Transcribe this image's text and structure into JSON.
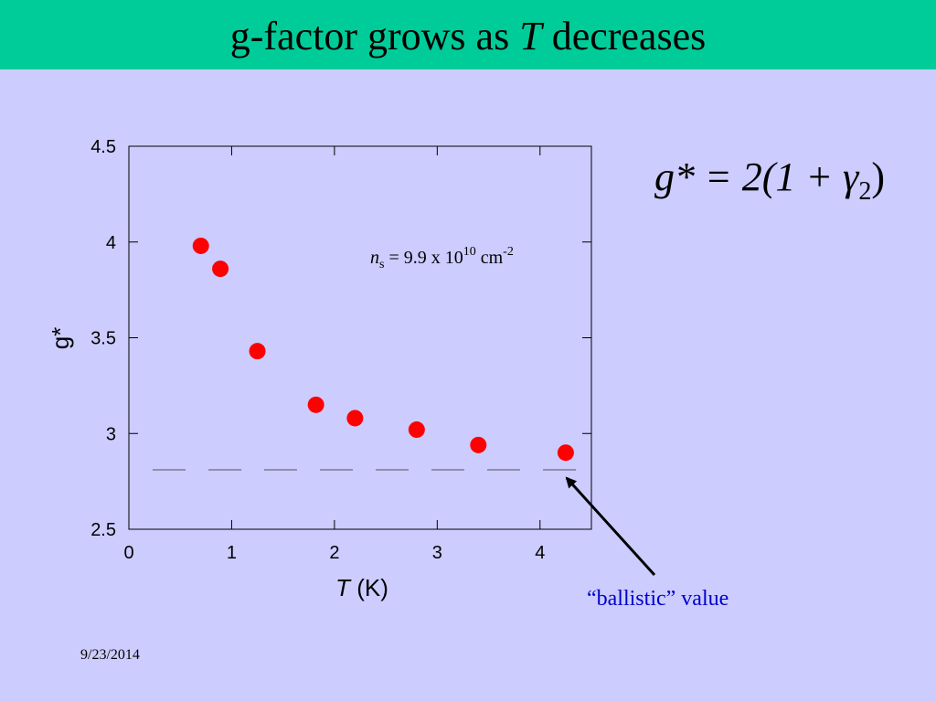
{
  "slide": {
    "title_prefix": "g-factor grows as ",
    "title_var": "T",
    "title_suffix": " decreases",
    "formula_lhs": "g* = 2(1 + γ",
    "formula_sub": "2",
    "formula_close": ")",
    "ballistic_label": "“ballistic” value",
    "date": "9/23/2014"
  },
  "colors": {
    "title_bar": "#00cc99",
    "background": "#ccccff",
    "points": "#ff0000",
    "ballistic_text": "#0000cc"
  },
  "chart_data": {
    "type": "scatter",
    "x": [
      0.7,
      0.89,
      1.25,
      1.82,
      2.2,
      2.8,
      3.4,
      4.25
    ],
    "y": [
      3.98,
      3.86,
      3.43,
      3.15,
      3.08,
      3.02,
      2.94,
      2.9
    ],
    "xlim": [
      0,
      4.5
    ],
    "ylim": [
      2.5,
      4.5
    ],
    "xticks": [
      "0",
      "1",
      "2",
      "3",
      "4"
    ],
    "yticks": [
      "2.5",
      "3",
      "3.5",
      "4",
      "4.5"
    ],
    "xlabel_var": "T",
    "xlabel_unit": " (K)",
    "ylabel": "g*",
    "annotation": {
      "var": "n",
      "sub": "s",
      "text": " = 9.9 x 10",
      "exp": "10",
      "unit": " cm",
      "unit_exp": "-2"
    },
    "reference_line": {
      "y": 2.81,
      "style": "dashed"
    },
    "grid": false
  }
}
